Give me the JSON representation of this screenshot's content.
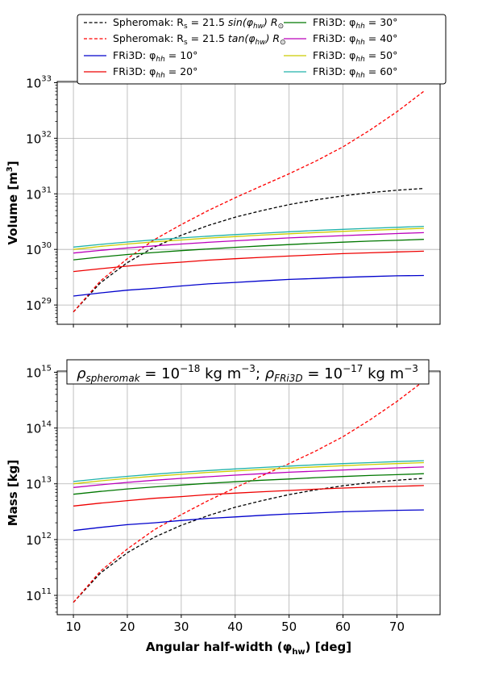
{
  "chart_data": [
    {
      "type": "line",
      "ylabel": "Volume [m",
      "ylabel_sup": "3",
      "ylabel_end": "]",
      "yscale": "log",
      "xlim": [
        7,
        78
      ],
      "ylim": [
        4.5e+28,
        1.05e+33
      ],
      "xticks": [
        10,
        20,
        30,
        40,
        50,
        60,
        70
      ],
      "yticks": [
        {
          "value": 1e+29,
          "base": "10",
          "exp": "29"
        },
        {
          "value": 1e+30,
          "base": "10",
          "exp": "30"
        },
        {
          "value": 1e+31,
          "base": "10",
          "exp": "31"
        },
        {
          "value": 1e+32,
          "base": "10",
          "exp": "32"
        },
        {
          "value": 1e+33,
          "base": "10",
          "exp": "33"
        }
      ],
      "grid": true,
      "legend_position": "top (above plot)",
      "x": [
        10,
        15,
        20,
        25,
        30,
        35,
        40,
        45,
        50,
        55,
        60,
        65,
        70,
        75
      ],
      "series": [
        {
          "color": "#000000",
          "dash": true,
          "values": [
            7.5e+28,
            2.5e+29,
            5.8e+29,
            1.1e+30,
            1.8e+30,
            2.7e+30,
            3.8e+30,
            5e+30,
            6.4e+30,
            7.8e+30,
            9.2e+30,
            1.05e+31,
            1.16e+31,
            1.25e+31
          ]
        },
        {
          "color": "#ff0000",
          "dash": true,
          "values": [
            7.5e+28,
            2.7e+29,
            6.8e+29,
            1.5e+30,
            2.8e+30,
            5e+30,
            8.5e+30,
            1.4e+31,
            2.3e+31,
            3.9e+31,
            7e+31,
            1.4e+32,
            3e+32,
            7e+32
          ]
        },
        {
          "color": "#0000cc",
          "dash": false,
          "values": [
            1.45e+29,
            1.65e+29,
            1.85e+29,
            2e+29,
            2.2e+29,
            2.4e+29,
            2.55e+29,
            2.72e+29,
            2.88e+29,
            3e+29,
            3.15e+29,
            3.25e+29,
            3.35e+29,
            3.4e+29
          ]
        },
        {
          "color": "#ee0000",
          "dash": false,
          "values": [
            4e+29,
            4.5e+29,
            5e+29,
            5.5e+29,
            5.9e+29,
            6.4e+29,
            6.8e+29,
            7.2e+29,
            7.6e+29,
            8e+29,
            8.4e+29,
            8.7e+29,
            9e+29,
            9.3e+29
          ]
        },
        {
          "color": "#007700",
          "dash": false,
          "values": [
            6.5e+29,
            7.3e+29,
            8.1e+29,
            8.8e+29,
            9.5e+29,
            1.02e+30,
            1.09e+30,
            1.16e+30,
            1.22e+30,
            1.29e+30,
            1.35e+30,
            1.41e+30,
            1.46e+30,
            1.52e+30
          ]
        },
        {
          "color": "#bb00bb",
          "dash": false,
          "values": [
            8.6e+29,
            9.6e+29,
            1.06e+30,
            1.16e+30,
            1.25e+30,
            1.34e+30,
            1.43e+30,
            1.52e+30,
            1.61e+30,
            1.69e+30,
            1.77e+30,
            1.85e+30,
            1.93e+30,
            2e+30
          ]
        },
        {
          "color": "#cccc00",
          "dash": false,
          "values": [
            1e+30,
            1.13e+30,
            1.25e+30,
            1.37e+30,
            1.48e+30,
            1.6e+30,
            1.7e+30,
            1.81e+30,
            1.91e+30,
            2.01e+30,
            2.11e+30,
            2.21e+30,
            2.3e+30,
            2.4e+30
          ]
        },
        {
          "color": "#20b2aa",
          "dash": false,
          "values": [
            1.1e+30,
            1.23e+30,
            1.36e+30,
            1.49e+30,
            1.61e+30,
            1.73e+30,
            1.85e+30,
            1.96e+30,
            2.08e+30,
            2.19e+30,
            2.3e+30,
            2.4e+30,
            2.5e+30,
            2.6e+30
          ]
        }
      ]
    },
    {
      "type": "line",
      "ylabel": "Mass [kg]",
      "xlabel": "Angular half-width (φ",
      "xlabel_sub": "hw",
      "xlabel_end": ") [deg]",
      "yscale": "log",
      "xlim": [
        7,
        78
      ],
      "ylim": [
        45000000000.0,
        1050000000000000.0
      ],
      "xticks": [
        10,
        20,
        30,
        40,
        50,
        60,
        70
      ],
      "yticks": [
        {
          "value": 100000000000.0,
          "base": "10",
          "exp": "11"
        },
        {
          "value": 1000000000000.0,
          "base": "10",
          "exp": "12"
        },
        {
          "value": 10000000000000.0,
          "base": "10",
          "exp": "13"
        },
        {
          "value": 100000000000000.0,
          "base": "10",
          "exp": "14"
        },
        {
          "value": 1000000000000000.0,
          "base": "10",
          "exp": "15"
        }
      ],
      "grid": true,
      "annotation": {
        "rho1": "ρ",
        "rho1_sub": "spheromak",
        "eq1": " = 10",
        "exp1": "−18",
        "unit1": " kg m",
        "unitexp1": "−3",
        "sep": "; ",
        "rho2": "ρ",
        "rho2_sub": "FRi3D",
        "eq2": " = 10",
        "exp2": "−17",
        "unit2": " kg m",
        "unitexp2": "−3"
      },
      "x": [
        10,
        15,
        20,
        25,
        30,
        35,
        40,
        45,
        50,
        55,
        60,
        65,
        70,
        75
      ],
      "series": [
        {
          "color": "#000000",
          "dash": true,
          "values": [
            75000000000.0,
            250000000000.0,
            580000000000.0,
            1100000000000.0,
            1800000000000.0,
            2700000000000.0,
            3800000000000.0,
            5000000000000.0,
            6400000000000.0,
            7800000000000.0,
            9200000000000.0,
            10500000000000.0,
            11600000000000.0,
            12500000000000.0
          ]
        },
        {
          "color": "#ff0000",
          "dash": true,
          "values": [
            75000000000.0,
            270000000000.0,
            680000000000.0,
            1500000000000.0,
            2800000000000.0,
            5000000000000.0,
            8500000000000.0,
            14000000000000.0,
            23000000000000.0,
            39000000000000.0,
            70000000000000.0,
            140000000000000.0,
            300000000000000.0,
            700000000000000.0
          ]
        },
        {
          "color": "#0000cc",
          "dash": false,
          "values": [
            1450000000000.0,
            1650000000000.0,
            1850000000000.0,
            2000000000000.0,
            2200000000000.0,
            2400000000000.0,
            2550000000000.0,
            2720000000000.0,
            2880000000000.0,
            3000000000000.0,
            3150000000000.0,
            3250000000000.0,
            3350000000000.0,
            3400000000000.0
          ]
        },
        {
          "color": "#ee0000",
          "dash": false,
          "values": [
            4000000000000.0,
            4500000000000.0,
            5000000000000.0,
            5500000000000.0,
            5900000000000.0,
            6400000000000.0,
            6800000000000.0,
            7200000000000.0,
            7600000000000.0,
            8000000000000.0,
            8400000000000.0,
            8700000000000.0,
            9000000000000.0,
            9300000000000.0
          ]
        },
        {
          "color": "#007700",
          "dash": false,
          "values": [
            6500000000000.0,
            7300000000000.0,
            8100000000000.0,
            8800000000000.0,
            9500000000000.0,
            10200000000000.0,
            10900000000000.0,
            11600000000000.0,
            12200000000000.0,
            12900000000000.0,
            13500000000000.0,
            14100000000000.0,
            14600000000000.0,
            15200000000000.0
          ]
        },
        {
          "color": "#bb00bb",
          "dash": false,
          "values": [
            8600000000000.0,
            9600000000000.0,
            10600000000000.0,
            11600000000000.0,
            12500000000000.0,
            13400000000000.0,
            14300000000000.0,
            15200000000000.0,
            16100000000000.0,
            16900000000000.0,
            17700000000000.0,
            18500000000000.0,
            19300000000000.0,
            20000000000000.0
          ]
        },
        {
          "color": "#cccc00",
          "dash": false,
          "values": [
            10000000000000.0,
            11300000000000.0,
            12500000000000.0,
            13700000000000.0,
            14800000000000.0,
            16000000000000.0,
            17000000000000.0,
            18100000000000.0,
            19100000000000.0,
            20100000000000.0,
            21100000000000.0,
            22100000000000.0,
            23000000000000.0,
            24000000000000.0
          ]
        },
        {
          "color": "#20b2aa",
          "dash": false,
          "values": [
            11000000000000.0,
            12300000000000.0,
            13600000000000.0,
            14900000000000.0,
            16100000000000.0,
            17300000000000.0,
            18500000000000.0,
            19600000000000.0,
            20800000000000.0,
            21900000000000.0,
            23000000000000.0,
            24000000000000.0,
            25000000000000.0,
            26000000000000.0
          ]
        }
      ]
    }
  ],
  "legend": [
    {
      "color": "#000000",
      "dash": true,
      "pre": "Spheromak: R",
      "sub": "s",
      "mid": " = 21.5 ",
      "fn": "sin",
      "arg": "(φ",
      "argsub": "hw",
      "post": ") R",
      "postsub": "⊙"
    },
    {
      "color": "#ff0000",
      "dash": true,
      "pre": "Spheromak: R",
      "sub": "s",
      "mid": " = 21.5 ",
      "fn": "tan",
      "arg": "(φ",
      "argsub": "hw",
      "post": ") R",
      "postsub": "⊙"
    },
    {
      "color": "#0000cc",
      "dash": false,
      "pre": "FRi3D: φ",
      "sub": "hh",
      "mid": " = 10°"
    },
    {
      "color": "#ee0000",
      "dash": false,
      "pre": "FRi3D: φ",
      "sub": "hh",
      "mid": " = 20°"
    },
    {
      "color": "#007700",
      "dash": false,
      "pre": "FRi3D: φ",
      "sub": "hh",
      "mid": " = 30°"
    },
    {
      "color": "#bb00bb",
      "dash": false,
      "pre": "FRi3D: φ",
      "sub": "hh",
      "mid": " = 40°"
    },
    {
      "color": "#cccc00",
      "dash": false,
      "pre": "FRi3D: φ",
      "sub": "hh",
      "mid": " = 50°"
    },
    {
      "color": "#20b2aa",
      "dash": false,
      "pre": "FRi3D: φ",
      "sub": "hh",
      "mid": " = 60°"
    }
  ]
}
